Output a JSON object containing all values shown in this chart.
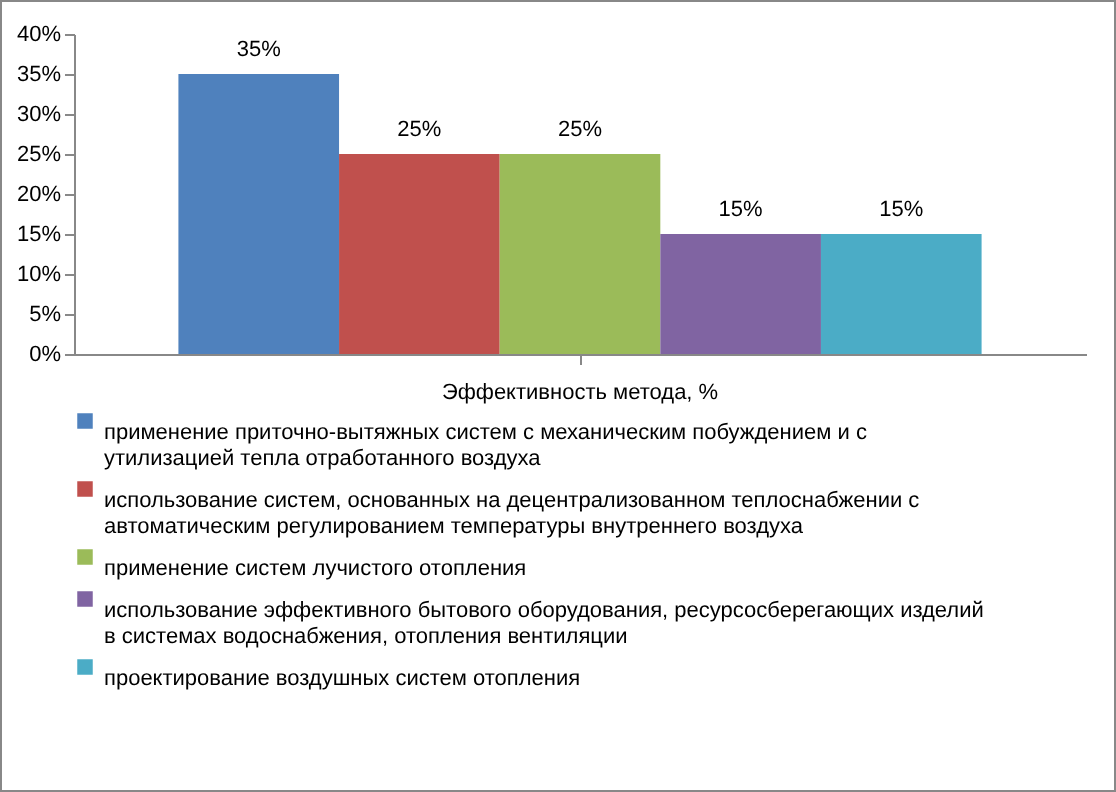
{
  "chart_data": {
    "type": "bar",
    "categories": [
      "Эффективность метода, %"
    ],
    "series": [
      {
        "name": "применение  приточно-вытяжных систем с механическим побуждением  и с утилизацией тепла отработанного воздуха",
        "color": "#4f81bd",
        "values": [
          35
        ],
        "value_labels": [
          "35%"
        ]
      },
      {
        "name": "использование систем, основанных на децентрализованном теплоснабжении  с автоматическим регулированием температуры внутреннего  воздуха",
        "color": "#c0504d",
        "values": [
          25
        ],
        "value_labels": [
          "25%"
        ]
      },
      {
        "name": "применение  систем лучистого отопления",
        "color": "#9bbb59",
        "values": [
          25
        ],
        "value_labels": [
          "25%"
        ]
      },
      {
        "name": "использование эффективного  бытового оборудования,  ресурсосберегающих изделий в системах водоснабжения,  отопления вентиляции",
        "color": "#8064a2",
        "values": [
          15
        ],
        "value_labels": [
          "15%"
        ]
      },
      {
        "name": "проектирование  воздушных систем отопления",
        "color": "#4bacc6",
        "values": [
          15
        ],
        "value_labels": [
          "15%"
        ]
      }
    ],
    "ylim": [
      0,
      40
    ],
    "yticks": [
      {
        "value": 0,
        "label": "0%"
      },
      {
        "value": 5,
        "label": "5%"
      },
      {
        "value": 10,
        "label": "10%"
      },
      {
        "value": 15,
        "label": "15%"
      },
      {
        "value": 20,
        "label": "20%"
      },
      {
        "value": 25,
        "label": "25%"
      },
      {
        "value": 30,
        "label": "30%"
      },
      {
        "value": 35,
        "label": "35%"
      },
      {
        "value": 40,
        "label": "40%"
      }
    ],
    "grid": false,
    "legend": "bottom"
  }
}
